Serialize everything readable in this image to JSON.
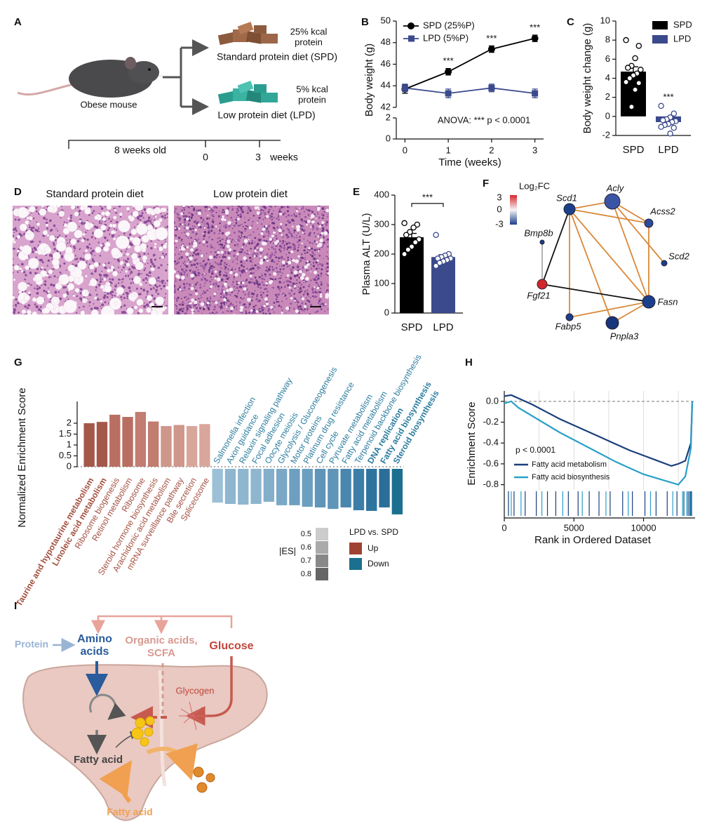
{
  "panel_labels": [
    "A",
    "B",
    "C",
    "D",
    "E",
    "F",
    "G",
    "H",
    "I"
  ],
  "panel_a": {
    "mouse": "Obese mouse",
    "spd_kcal": [
      "25% kcal",
      "protein"
    ],
    "spd_name": "Standard protein diet (SPD)",
    "lpd_kcal": [
      "5% kcal",
      "protein"
    ],
    "lpd_name": "Low protein diet (LPD)",
    "timeline": {
      "start": "8 weeks old",
      "zero": "0",
      "end": "3",
      "unit": "weeks"
    }
  },
  "panel_d": {
    "titles": [
      "Standard protein diet",
      "Low protein diet"
    ]
  },
  "panel_f": {
    "legend_title": "Log₂FC",
    "legend_ticks": [
      3,
      0,
      -3
    ],
    "nodes": [
      {
        "label": "Scd1"
      },
      {
        "label": "Acly"
      },
      {
        "label": "Acss2"
      },
      {
        "label": "Scd2"
      },
      {
        "label": "Fasn"
      },
      {
        "label": "Pnpla3"
      },
      {
        "label": "Fabp5"
      },
      {
        "label": "Fgf21"
      },
      {
        "label": "Bmp8b"
      }
    ]
  },
  "panel_i": {
    "protein": "Protein",
    "amino_acids": [
      "Amino",
      "acids"
    ],
    "organic_acids": [
      "Organic acids,",
      "SCFA"
    ],
    "glucose": "Glucose",
    "glycogen": "Glycogen",
    "fatty_acid_liver": "Fatty acid",
    "fatty_acid_in": "Fatty acid"
  },
  "chart_data": [
    {
      "type": "line",
      "xlabel": "Time (weeks)",
      "ylabel": "Body weight (g)",
      "x": [
        0,
        1,
        2,
        3
      ],
      "xlim": [
        -0.2,
        3.2
      ],
      "xticks": [
        0,
        1,
        2,
        3
      ],
      "ylim": [
        42,
        50
      ],
      "yticks": [
        42,
        44,
        46,
        48,
        50
      ],
      "lower_ylim": [
        0,
        2
      ],
      "lower_yticks": [
        0,
        2
      ],
      "legend": "upper left",
      "series": [
        {
          "name": "SPD (25%P)",
          "color": "#000000",
          "marker": "circle",
          "values": [
            43.7,
            45.3,
            47.4,
            48.4
          ],
          "errors": [
            0.4,
            0.3,
            0.3,
            0.3
          ],
          "annotations": [
            null,
            "***",
            "***",
            "***"
          ]
        },
        {
          "name": "LPD (5%P)",
          "color": "#3b4a8c",
          "marker": "square",
          "values": [
            43.8,
            43.3,
            43.8,
            43.3
          ],
          "errors": [
            0.35,
            0.4,
            0.35,
            0.4
          ]
        }
      ],
      "annotation": "ANOVA: *** p < 0.0001"
    },
    {
      "type": "bar",
      "ylabel": "Body weight change (g)",
      "categories": [
        "SPD",
        "LPD"
      ],
      "values": [
        4.7,
        -0.6
      ],
      "errors": [
        0.5,
        0.25
      ],
      "colors": [
        "#000000",
        "#3b4a8c"
      ],
      "points": [
        [
          8.0,
          7.4,
          6.1,
          5.3,
          5.1,
          4.9,
          4.5,
          4.3,
          4.0,
          3.6,
          3.5,
          2.8,
          1.0
        ],
        [
          1.1,
          0.3,
          -0.1,
          -0.3,
          -0.4,
          -0.5,
          -0.6,
          -0.8,
          -0.9,
          -1.1,
          -1.2,
          -1.8
        ]
      ],
      "ylim": [
        -2,
        10
      ],
      "yticks": [
        -2,
        0,
        2,
        4,
        6,
        8,
        10
      ],
      "annotations": [
        null,
        "***"
      ],
      "legend": "upper right"
    },
    {
      "type": "bar",
      "ylabel": "Plasma ALT (U/L)",
      "categories": [
        "SPD",
        "LPD"
      ],
      "values": [
        257,
        190
      ],
      "errors": [
        13,
        8
      ],
      "colors": [
        "#000000",
        "#3b4a8c"
      ],
      "points": [
        [
          305,
          300,
          290,
          275,
          265,
          250,
          240,
          225,
          215,
          200
        ],
        [
          265,
          200,
          195,
          190,
          185,
          185,
          180,
          175,
          170,
          160
        ]
      ],
      "ylim": [
        0,
        400
      ],
      "yticks": [
        0,
        100,
        200,
        300,
        400
      ],
      "bracket_annotation": "***"
    },
    {
      "type": "bar",
      "ylabel": "Normalized Enrichment Score",
      "categories": [
        "Taurine and hypotaurine metabolism",
        "Linoleic acid metabolism",
        "Ribosome biogenesis",
        "Retinol metabolism",
        "Ribosome",
        "Steroid hormone biosynthesis",
        "Arachidonic acid metabolism",
        "mRNA surveillance pathway",
        "Bile secretion",
        "Spliceosome",
        "Salmonella infection",
        "Axon guidance",
        "Relaxin signaling pathway",
        "Focal adhesion",
        "Oocyte meiosis",
        "Glycolysis / Gluconeogenesis",
        "Motor proteins",
        "Platinum drug resistance",
        "Cell cycle",
        "Pyruvate metabolism",
        "Fatty acid metabolism",
        "Terpenoid backbone biosynthesis",
        "DNA replication",
        "Fatty acid biosynthesis",
        "Steroid biosynthesis"
      ],
      "values": [
        2.0,
        2.06,
        2.39,
        2.29,
        2.52,
        2.08,
        1.87,
        1.92,
        1.87,
        1.96,
        -1.65,
        -1.71,
        -1.74,
        -1.71,
        -1.61,
        -1.77,
        -1.77,
        -1.84,
        -1.87,
        -1.94,
        -1.87,
        -2.0,
        -2.03,
        -1.87,
        -2.19
      ],
      "colors": [
        "#a4584a",
        "#a4584a",
        "#b86f62",
        "#b86f62",
        "#c27c70",
        "#c27c70",
        "#cf968b",
        "#cf968b",
        "#d9a69c",
        "#d9a69c",
        "#9cc0d6",
        "#8fb6cf",
        "#8fb6cf",
        "#8fb6cf",
        "#84afca",
        "#7aa8c6",
        "#6d9fc0",
        "#6d9fc0",
        "#5e95b9",
        "#5e95b9",
        "#4a87ae",
        "#3d7ea8",
        "#2e749e",
        "#2b6f99",
        "#1b6f8f"
      ],
      "bold": [
        0,
        1,
        22,
        23,
        24
      ],
      "label_colors": {
        "up": "#a24f3f",
        "down": "#2b7c9e"
      },
      "ylim": [
        -2.3,
        3
      ],
      "yticks": [
        0,
        0.5,
        1,
        1.5,
        2
      ],
      "es_legend": {
        "title": "|ES|",
        "levels": [
          0.5,
          0.6,
          0.7,
          0.8
        ],
        "colors": [
          "#cccccc",
          "#aaaaaa",
          "#888888",
          "#666666"
        ]
      },
      "direction_legend": {
        "title": "LPD vs. SPD",
        "entries": [
          {
            "name": "Up",
            "color": "#a04232"
          },
          {
            "name": "Down",
            "color": "#1b6f8f"
          }
        ]
      }
    },
    {
      "type": "line",
      "xlabel": "Rank in Ordered Dataset",
      "ylabel": "Enrichment Score",
      "annotation": "p < 0.0001",
      "xlim": [
        0,
        13700
      ],
      "xticks": [
        0,
        5000,
        10000
      ],
      "ylim": [
        -0.85,
        0.1
      ],
      "yticks": [
        {
          "value": 0,
          "label": "0.0"
        },
        -0.2,
        -0.4,
        -0.6,
        -0.8
      ],
      "xgrid": [
        2500,
        5000,
        7500,
        10000,
        12500
      ],
      "zero_line": true,
      "legend": "lower left",
      "series": [
        {
          "name": "Fatty acid metabolism",
          "color": "#1a3f7a",
          "x": [
            0,
            500,
            1000,
            2000,
            3000,
            4000,
            5000,
            6000,
            7000,
            8000,
            9000,
            10000,
            11000,
            12000,
            12500,
            13000,
            13400,
            13500
          ],
          "values": [
            0.05,
            0.06,
            0.03,
            -0.03,
            -0.1,
            -0.17,
            -0.23,
            -0.29,
            -0.35,
            -0.41,
            -0.47,
            -0.52,
            -0.57,
            -0.62,
            -0.6,
            -0.57,
            -0.4,
            0
          ],
          "hits": [
            300,
            700,
            1500,
            2300,
            3100,
            3700,
            4600,
            5300,
            6100,
            6800,
            7600,
            8500,
            9200,
            10100,
            10900,
            11700,
            12400,
            12900,
            13200,
            13350,
            13450
          ]
        },
        {
          "name": "Fatty acid biosynthesis",
          "color": "#2aa0c8",
          "x": [
            0,
            500,
            1000,
            2000,
            3000,
            4000,
            5000,
            6000,
            7000,
            8000,
            9000,
            10000,
            11000,
            12000,
            12500,
            13000,
            13400,
            13500
          ],
          "values": [
            -0.02,
            0.0,
            -0.06,
            -0.14,
            -0.22,
            -0.3,
            -0.37,
            -0.44,
            -0.51,
            -0.58,
            -0.64,
            -0.7,
            -0.74,
            -0.78,
            -0.8,
            -0.72,
            -0.45,
            0
          ],
          "hits": [
            500,
            1200,
            2700,
            4200,
            5600,
            7300,
            8900,
            10500,
            12100,
            12800,
            13100,
            13300,
            13400
          ]
        }
      ]
    }
  ]
}
